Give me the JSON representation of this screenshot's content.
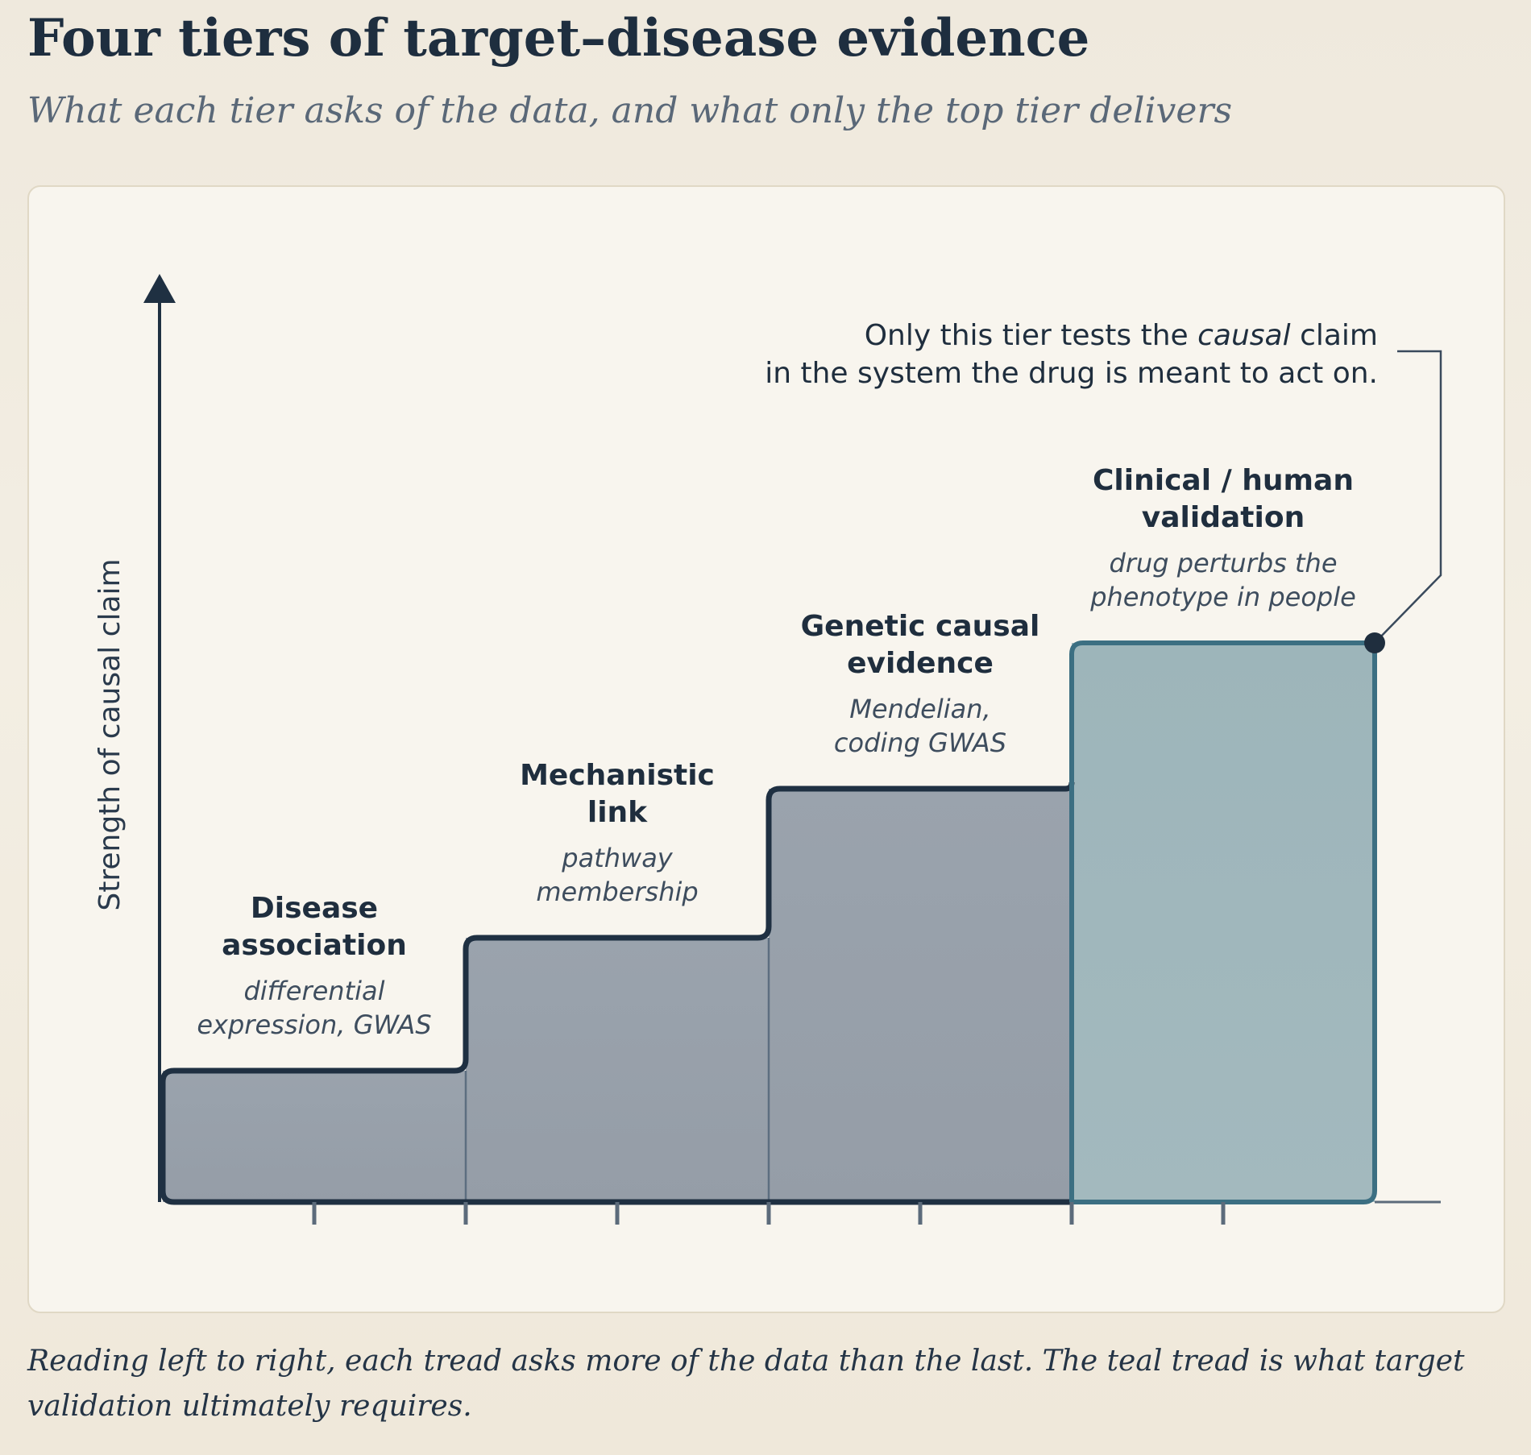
{
  "header": {
    "title": "Four tiers of target–disease evidence",
    "subtitle": "What each tier asks of the data, and what only the top tier delivers"
  },
  "chart": {
    "ylabel": "Strength of causal claim",
    "tiers": [
      {
        "title_lines": [
          "Disease",
          "association"
        ],
        "desc_lines": [
          "differential",
          "expression, GWAS"
        ],
        "level": 1,
        "highlight": false
      },
      {
        "title_lines": [
          "Mechanistic",
          "link"
        ],
        "desc_lines": [
          "pathway",
          "membership"
        ],
        "level": 2,
        "highlight": false
      },
      {
        "title_lines": [
          "Genetic causal",
          "evidence"
        ],
        "desc_lines": [
          "Mendelian,",
          "coding GWAS"
        ],
        "level": 3,
        "highlight": false
      },
      {
        "title_lines": [
          "Clinical / human",
          "validation"
        ],
        "desc_lines": [
          "drug perturbs the",
          "phenotype in people"
        ],
        "level": 4,
        "highlight": true
      }
    ],
    "callout": {
      "line1_before": "Only this tier tests the ",
      "line1_emphasis": "causal",
      "line1_after": " claim",
      "line2": "in the system the drug is meant to act on."
    },
    "colors": {
      "step_fill": "#9aa2ab",
      "step_stroke": "#1f3042",
      "highlight_fill": "#9fb6bb",
      "highlight_stroke": "#3c6f82",
      "axis": "#1f3042",
      "tick": "#5c6b7b"
    }
  },
  "footer": {
    "caption": "Reading left to right, each tread asks more of the data than the last. The teal tread is what target validation ultimately requires."
  }
}
